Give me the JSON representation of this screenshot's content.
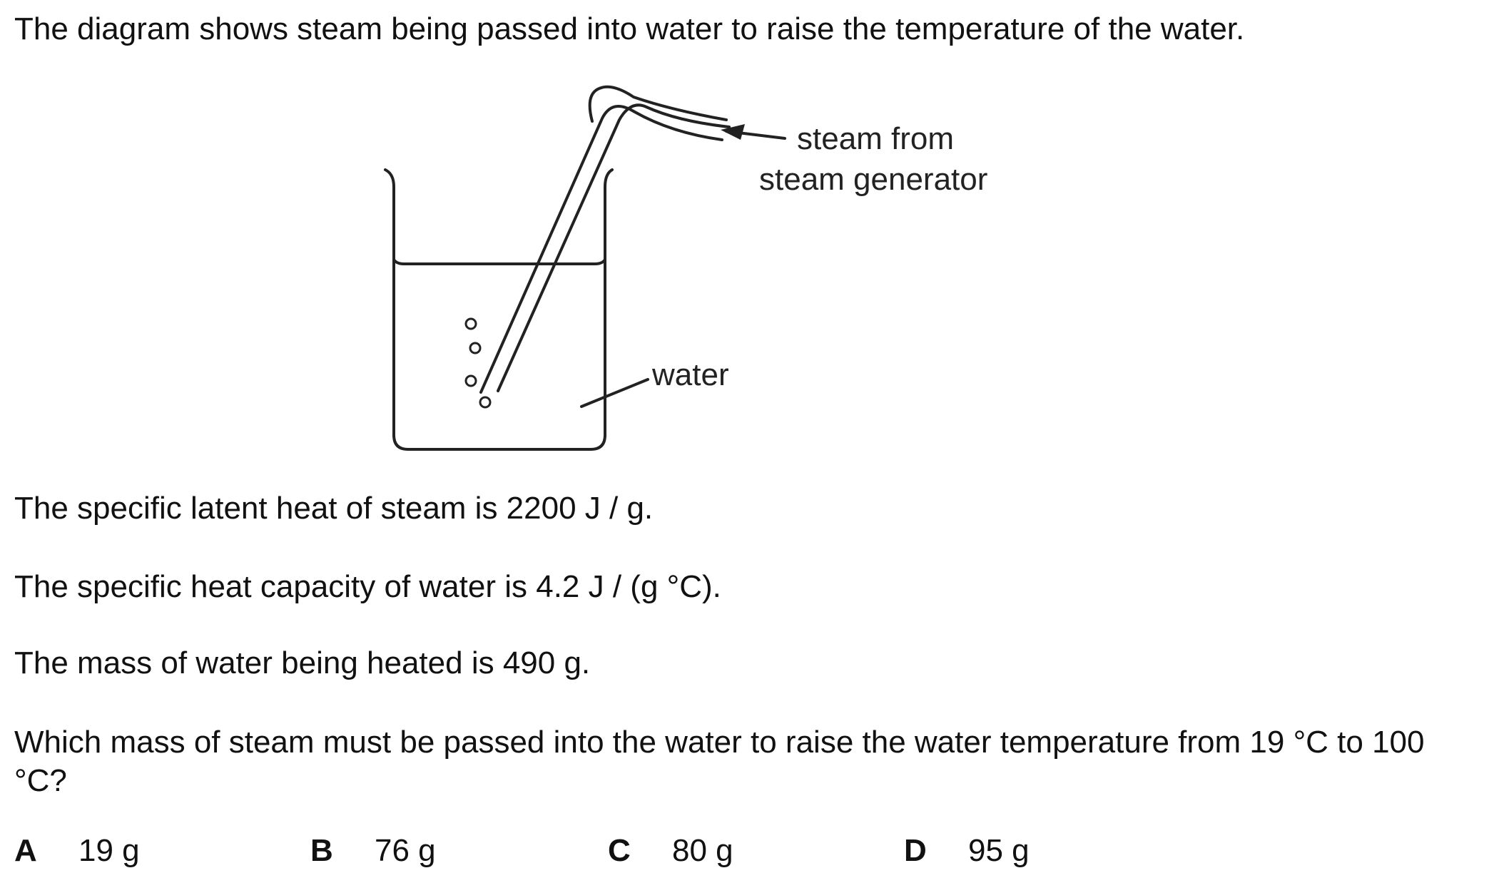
{
  "question": {
    "intro": "The diagram shows steam being passed into water to raise the temperature of the water.",
    "facts": [
      "The specific latent heat of steam is 2200 J / g.",
      "The specific heat capacity of water is 4.2 J / (g °C).",
      "The mass of water being heated is 490 g."
    ],
    "prompt": "Which mass of steam must be passed into the water to raise the water temperature from 19 °C to 100 °C?"
  },
  "diagram": {
    "label_steam_line1": "steam from",
    "label_steam_line2": "steam generator",
    "label_water": "water"
  },
  "options": [
    {
      "letter": "A",
      "value": "19 g"
    },
    {
      "letter": "B",
      "value": "76 g"
    },
    {
      "letter": "C",
      "value": "80 g"
    },
    {
      "letter": "D",
      "value": "95 g"
    }
  ]
}
